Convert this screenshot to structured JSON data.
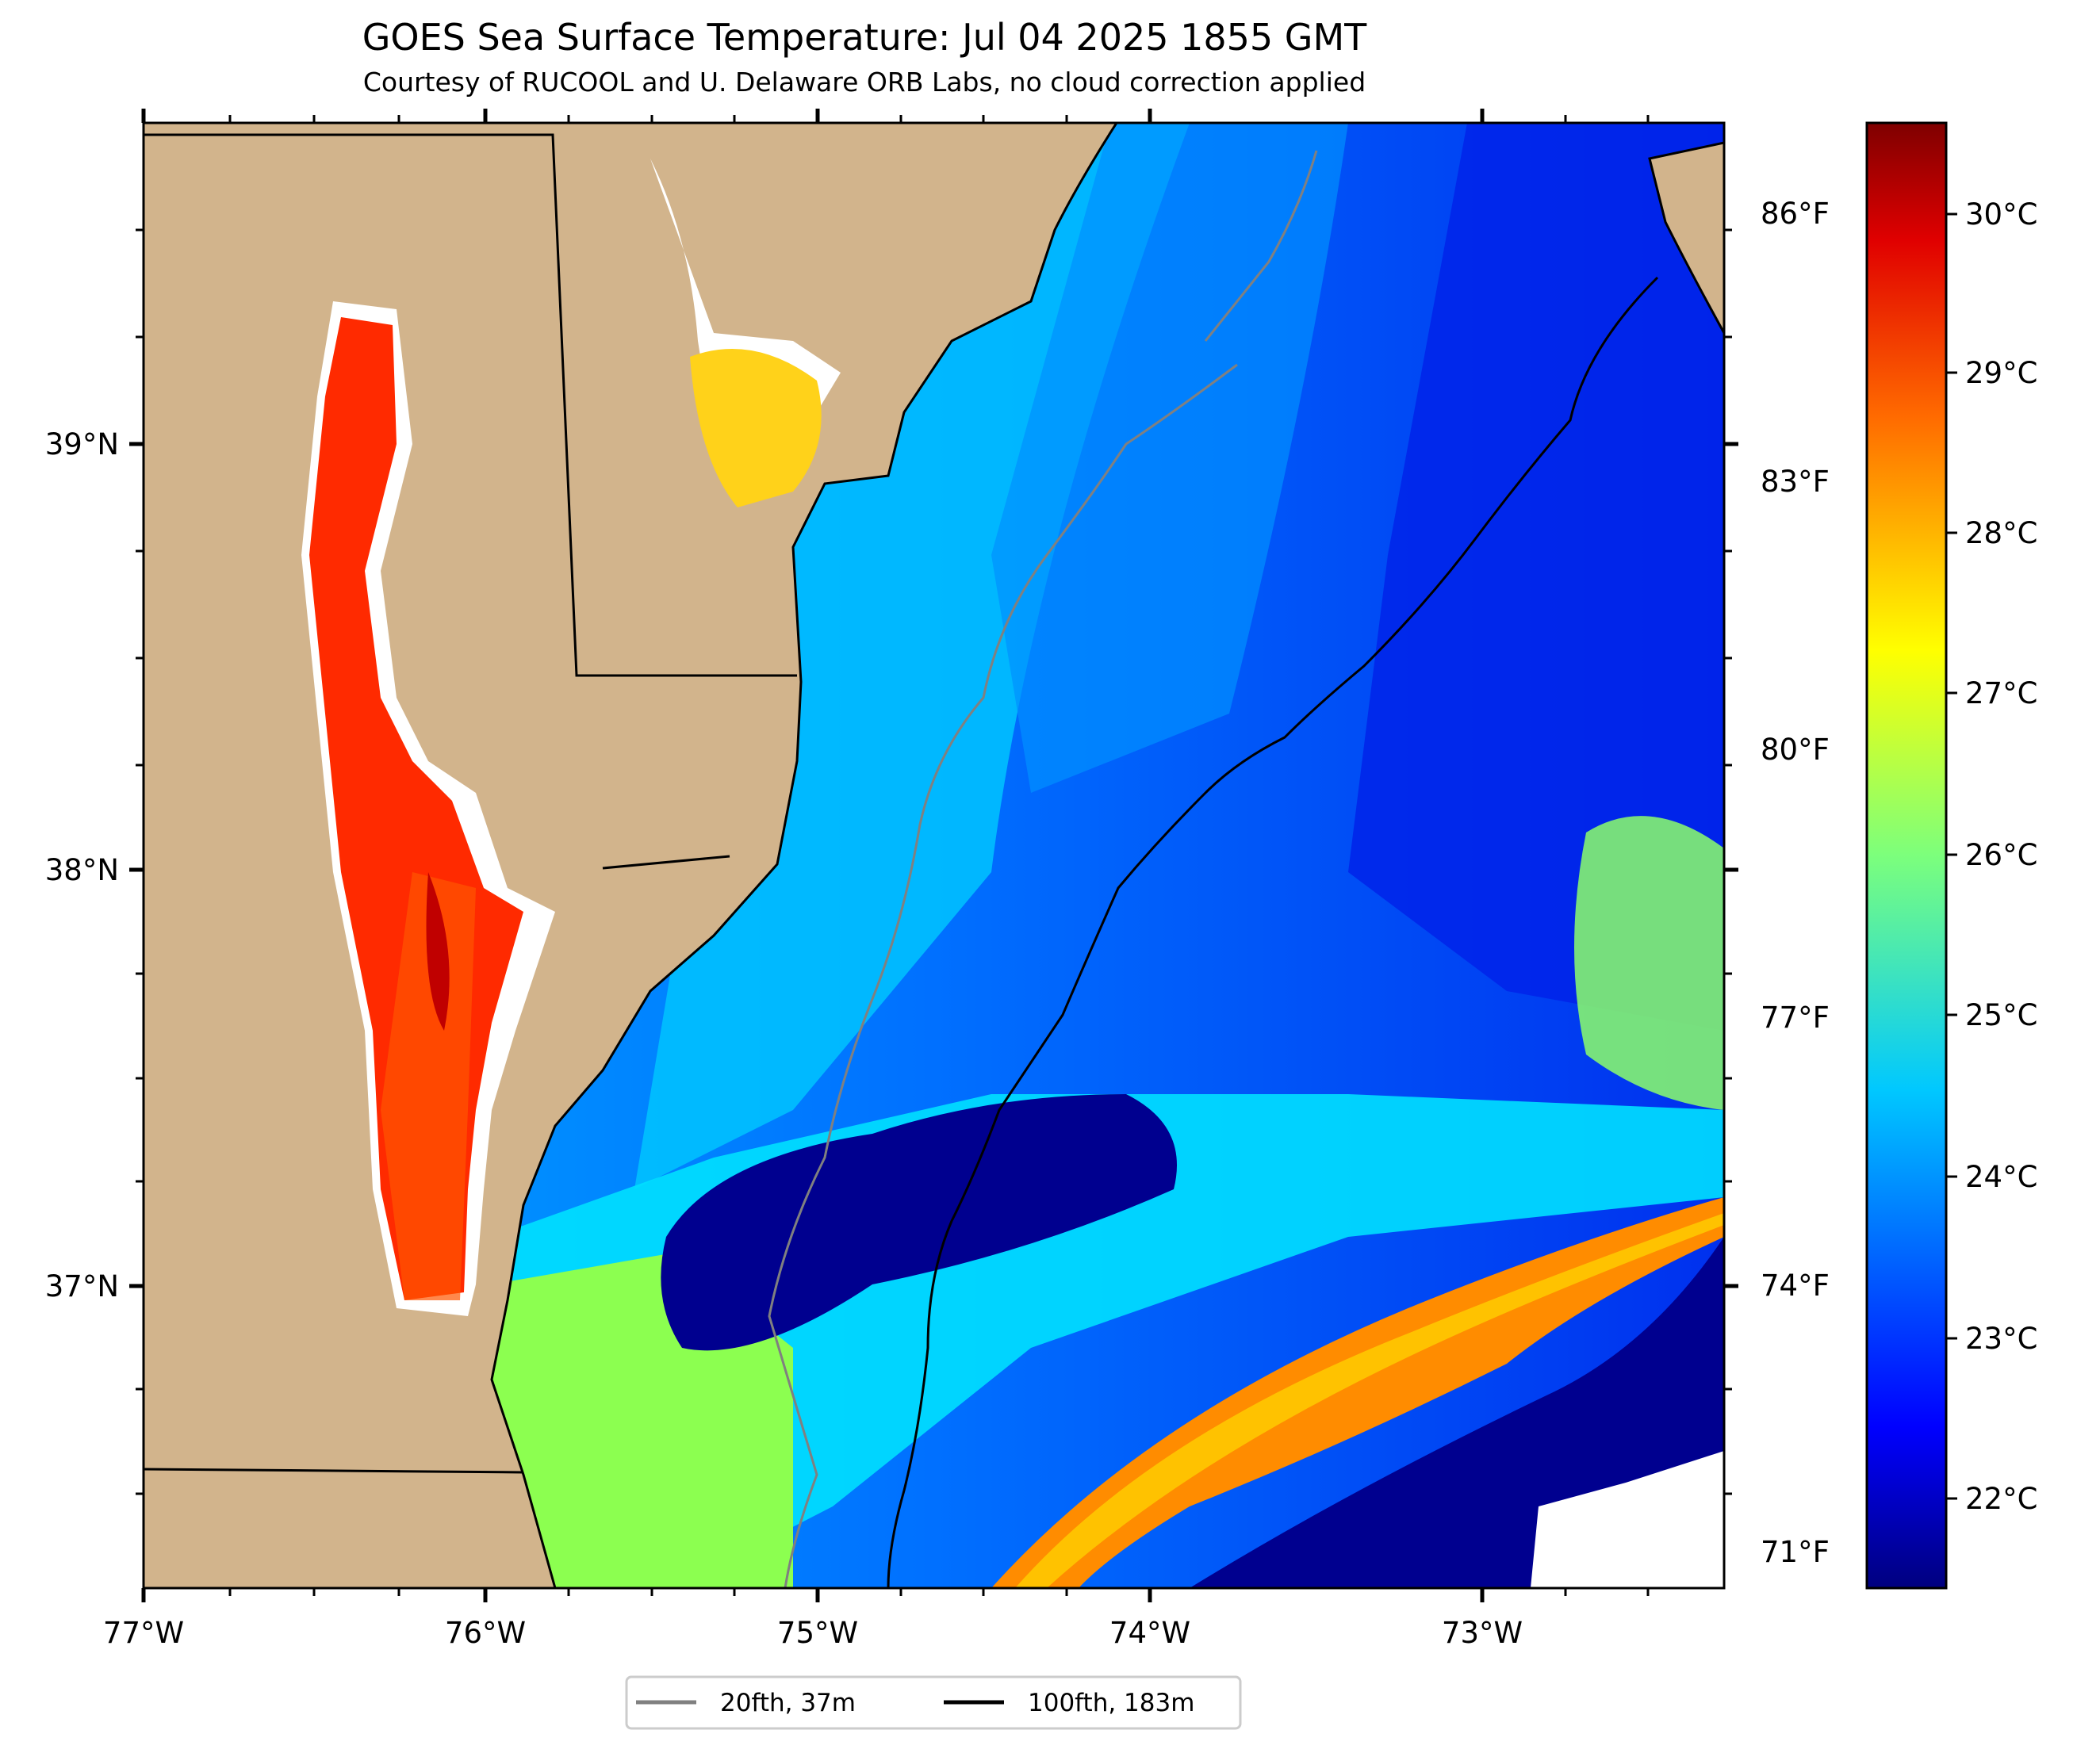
{
  "title": "GOES Sea Surface Temperature: Jul 04 2025 1855 GMT",
  "subtitle": "Courtesy of RUCOOL and U. Delaware ORB Labs, no cloud correction applied",
  "map": {
    "lon_ticks": [
      "77°W",
      "76°W",
      "75°W",
      "74°W",
      "73°W"
    ],
    "lat_ticks": [
      "39°N",
      "38°N",
      "37°N"
    ],
    "f_ticks": [
      "86°F",
      "83°F",
      "80°F",
      "77°F",
      "74°F",
      "71°F"
    ],
    "land_color": "#d2b48c",
    "colormap": "jet"
  },
  "colorbar": {
    "labels": [
      "30°C",
      "29°C",
      "28°C",
      "27°C",
      "26°C",
      "25°C",
      "24°C",
      "23°C",
      "22°C"
    ],
    "colors": [
      "#7f0000",
      "#ff0000",
      "#ff8000",
      "#ffff00",
      "#80ff80",
      "#00ffff",
      "#0080ff",
      "#0000ff",
      "#00007f"
    ]
  },
  "legend": {
    "items": [
      {
        "label": "20fth, 37m",
        "color": "#808080"
      },
      {
        "label": "100fth, 183m",
        "color": "#000000"
      }
    ]
  }
}
